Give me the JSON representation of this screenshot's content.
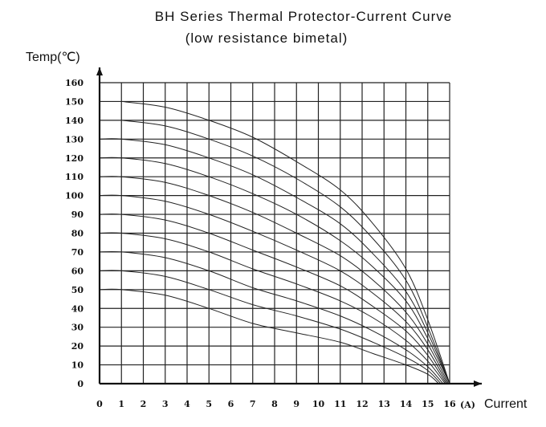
{
  "chart_data": {
    "type": "line",
    "title": "BH Series Thermal Protector-Current Curve",
    "subtitle": "(low resistance bimetal)",
    "ylabel": "Temp(℃)",
    "xlabel": "Current",
    "x_unit": "(A)",
    "xlim": [
      0,
      16
    ],
    "ylim": [
      0,
      160
    ],
    "x_ticks": [
      "0",
      "1",
      "2",
      "3",
      "4",
      "5",
      "6",
      "7",
      "8",
      "9",
      "10",
      "11",
      "12",
      "13",
      "14",
      "15",
      "16"
    ],
    "y_ticks": [
      "0",
      "10",
      "20",
      "30",
      "40",
      "50",
      "60",
      "70",
      "80",
      "90",
      "100",
      "110",
      "120",
      "130",
      "140",
      "150",
      "160"
    ],
    "grid": true,
    "series": [
      {
        "x": [
          0,
          1,
          3,
          5,
          7,
          9,
          11,
          12.5,
          14,
          15,
          15.5
        ],
        "y": [
          50,
          50,
          47,
          40,
          32,
          27,
          22,
          16,
          10,
          5,
          0
        ]
      },
      {
        "x": [
          0,
          1,
          3,
          5,
          7,
          9,
          11,
          12.5,
          14,
          15,
          15.6
        ],
        "y": [
          60,
          60,
          57,
          50,
          42,
          36,
          29,
          22,
          14,
          7,
          0
        ]
      },
      {
        "x": [
          0,
          1,
          3,
          5,
          7,
          9,
          11,
          12.5,
          14,
          15,
          15.7
        ],
        "y": [
          70,
          70,
          67,
          60,
          51,
          44,
          36,
          28,
          18,
          9,
          0
        ]
      },
      {
        "x": [
          0,
          1,
          3,
          5,
          7,
          9,
          11,
          12.5,
          14,
          15,
          15.8
        ],
        "y": [
          80,
          80,
          77,
          70,
          61,
          53,
          44,
          35,
          23,
          12,
          0
        ]
      },
      {
        "x": [
          0,
          1,
          3,
          5,
          7,
          9,
          11,
          12.5,
          14,
          15,
          15.85
        ],
        "y": [
          90,
          90,
          87,
          80,
          71,
          62,
          52,
          41,
          28,
          15,
          0
        ]
      },
      {
        "x": [
          0,
          1,
          3,
          5,
          7,
          9,
          11,
          12.5,
          14,
          15,
          15.9
        ],
        "y": [
          100,
          100,
          97,
          90,
          81,
          71,
          60,
          48,
          33,
          18,
          0
        ]
      },
      {
        "x": [
          0,
          1,
          3,
          5,
          7,
          9,
          11,
          12.5,
          14,
          15,
          15.95
        ],
        "y": [
          110,
          110,
          107,
          100,
          91,
          80,
          68,
          55,
          38,
          21,
          0
        ]
      },
      {
        "x": [
          0,
          1,
          3,
          5,
          7,
          9,
          11,
          12.5,
          14,
          15,
          16
        ],
        "y": [
          120,
          120,
          117,
          110,
          101,
          90,
          76,
          62,
          44,
          24,
          0
        ]
      },
      {
        "x": [
          0,
          1,
          3,
          5,
          7,
          9,
          11,
          12.5,
          14,
          15,
          16
        ],
        "y": [
          130,
          130,
          127,
          120,
          111,
          99,
          85,
          69,
          49,
          27,
          0
        ]
      },
      {
        "x": [
          1,
          3,
          5,
          7,
          9,
          11,
          12.5,
          14,
          15,
          16
        ],
        "y": [
          140,
          137,
          130,
          121,
          109,
          94,
          77,
          55,
          30,
          0
        ]
      },
      {
        "x": [
          1,
          3,
          5,
          7,
          9,
          11,
          12.5,
          14,
          15,
          16
        ],
        "y": [
          150,
          147,
          140,
          131,
          118,
          103,
          85,
          61,
          34,
          0
        ]
      }
    ]
  }
}
